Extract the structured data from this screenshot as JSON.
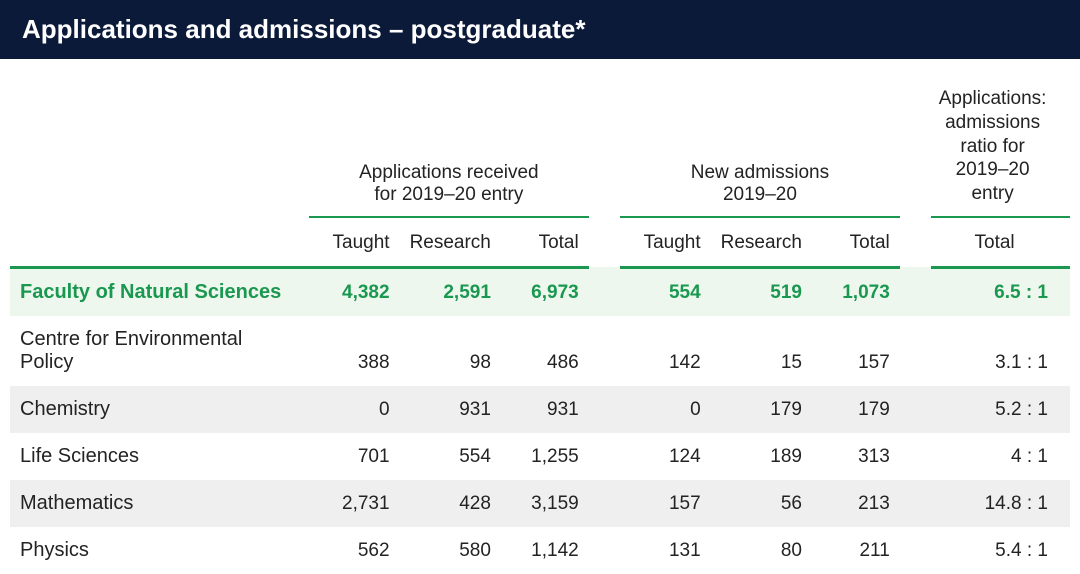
{
  "title": "Applications and admissions – postgraduate*",
  "group_headers": {
    "apps_received": "Applications received\nfor  2019–20 entry",
    "new_admissions": "New admissions\n2019–20",
    "ratio": "Applications: admissions ratio for 2019–20 entry"
  },
  "sub_headers": {
    "taught": "Taught",
    "research": "Research",
    "total": "Total"
  },
  "rows": [
    {
      "label": "Faculty of Natural Sciences",
      "is_faculty": true,
      "apps_taught": "4,382",
      "apps_research": "2,591",
      "apps_total": "6,973",
      "adm_taught": "554",
      "adm_research": "519",
      "adm_total": "1,073",
      "ratio": "6.5 : 1"
    },
    {
      "label": "Centre for Environmental Policy",
      "apps_taught": "388",
      "apps_research": "98",
      "apps_total": "486",
      "adm_taught": "142",
      "adm_research": "15",
      "adm_total": "157",
      "ratio": "3.1 : 1"
    },
    {
      "label": "Chemistry",
      "alt": true,
      "apps_taught": "0",
      "apps_research": "931",
      "apps_total": "931",
      "adm_taught": "0",
      "adm_research": "179",
      "adm_total": "179",
      "ratio": "5.2 : 1"
    },
    {
      "label": "Life Sciences",
      "apps_taught": "701",
      "apps_research": "554",
      "apps_total": "1,255",
      "adm_taught": "124",
      "adm_research": "189",
      "adm_total": "313",
      "ratio": "4 : 1"
    },
    {
      "label": "Mathematics",
      "alt": true,
      "apps_taught": "2,731",
      "apps_research": "428",
      "apps_total": "3,159",
      "adm_taught": "157",
      "adm_research": "56",
      "adm_total": "213",
      "ratio": "14.8 : 1"
    },
    {
      "label": "Physics",
      "apps_taught": "562",
      "apps_research": "580",
      "apps_total": "1,142",
      "adm_taught": "131",
      "adm_research": "80",
      "adm_total": "211",
      "ratio": "5.4 : 1"
    }
  ],
  "colors": {
    "header_bg": "#0c1a3a",
    "accent": "#1a9850",
    "row_alt": "#efefef",
    "faculty_bg": "#eef7ee"
  }
}
